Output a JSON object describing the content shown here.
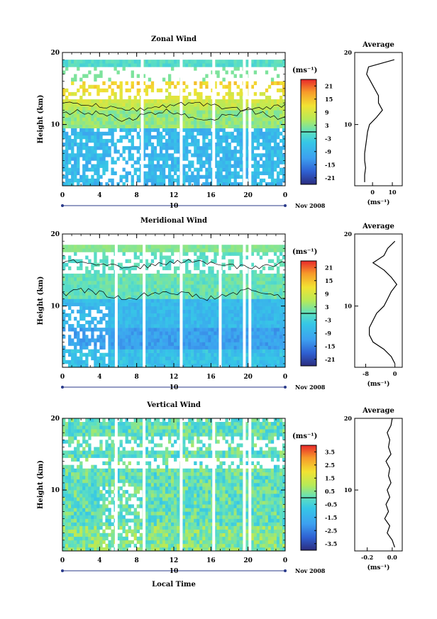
{
  "figure": {
    "date_label": "Nov 2008",
    "xlabel": "Local Time",
    "ylabel": "Height (km)",
    "unit_label": "(ms⁻¹)",
    "average_title": "Average",
    "date_marker": "10"
  },
  "chart_data": [
    {
      "type": "heatmap",
      "title": "Zonal Wind",
      "x_ticks": [
        "0",
        "4",
        "8",
        "12",
        "16",
        "20",
        "0"
      ],
      "y_ticks": [
        "10",
        "20"
      ],
      "xlim": [
        0,
        24
      ],
      "ylim": [
        1.5,
        20
      ],
      "colorbar": {
        "ticks": [
          "21",
          "15",
          "9",
          "3",
          "-3",
          "-9",
          "-15",
          "-21"
        ],
        "range": [
          -24,
          24
        ]
      },
      "white_gaps_hours": [
        8.6,
        12.8,
        16.3,
        19.6,
        20.2
      ],
      "contours": "0 ms-1 contour line",
      "average_profile": {
        "xlabel": "(ms⁻¹)",
        "x_ticks": [
          "0",
          "10"
        ],
        "xlim": [
          -9,
          15
        ],
        "height": [
          2,
          3,
          4,
          5,
          6,
          7,
          8,
          9,
          10,
          11,
          12,
          13,
          14,
          15,
          16,
          17,
          18,
          19
        ],
        "value": [
          -4,
          -4,
          -3.5,
          -4,
          -4,
          -3.5,
          -3,
          -2.5,
          -1.5,
          2,
          5,
          3,
          3,
          1,
          -1,
          -3,
          -2,
          11
        ]
      }
    },
    {
      "type": "heatmap",
      "title": "Meridional Wind",
      "x_ticks": [
        "0",
        "4",
        "8",
        "12",
        "16",
        "20",
        "0"
      ],
      "y_ticks": [
        "10",
        "20"
      ],
      "xlim": [
        0,
        24
      ],
      "ylim": [
        1.5,
        20
      ],
      "colorbar": {
        "ticks": [
          "21",
          "15",
          "9",
          "3",
          "-3",
          "-9",
          "-15",
          "-21"
        ],
        "range": [
          -24,
          24
        ]
      },
      "white_gaps_hours": [
        5.8,
        8.8,
        12.8,
        17.0,
        19.6,
        20.2
      ],
      "contours": "0 ms-1 contour line",
      "average_profile": {
        "xlabel": "(ms⁻¹)",
        "x_ticks": [
          "-8",
          "0"
        ],
        "xlim": [
          -11,
          2
        ],
        "height": [
          2,
          3,
          4,
          5,
          6,
          7,
          8,
          9,
          10,
          11,
          12,
          13,
          14,
          15,
          16,
          17,
          18,
          19
        ],
        "value": [
          0,
          -1,
          -3,
          -6,
          -7,
          -7,
          -6,
          -5,
          -3,
          -2,
          -1,
          0.5,
          -1,
          -3,
          -6,
          -3,
          -2,
          0
        ]
      }
    },
    {
      "type": "heatmap",
      "title": "Vertical Wind",
      "x_ticks": [
        "0",
        "4",
        "8",
        "12",
        "16",
        "20",
        "0"
      ],
      "y_ticks": [
        "10",
        "20"
      ],
      "xlim": [
        0,
        24
      ],
      "ylim": [
        1.5,
        20
      ],
      "colorbar": {
        "ticks": [
          "3.5",
          "2.5",
          "1.5",
          "0.5",
          "-0.5",
          "-1.5",
          "-2.5",
          "-3.5"
        ],
        "range": [
          -4,
          4
        ]
      },
      "white_gaps_hours": [
        5.8,
        8.8,
        12.8,
        16.3,
        19.6,
        20.2
      ],
      "average_profile": {
        "xlabel": "(ms⁻¹)",
        "x_ticks": [
          "-0.2",
          "0.0"
        ],
        "xlim": [
          -0.3,
          0.08
        ],
        "height": [
          2,
          3,
          4,
          5,
          6,
          7,
          8,
          9,
          10,
          11,
          12,
          13,
          14,
          15,
          16,
          17,
          18,
          19,
          20
        ],
        "value": [
          0.02,
          0,
          -0.04,
          -0.02,
          -0.06,
          -0.03,
          -0.05,
          -0.02,
          -0.04,
          -0.01,
          -0.03,
          -0.02,
          -0.05,
          -0.01,
          -0.03,
          -0.02,
          -0.04,
          -0.01,
          0
        ]
      }
    }
  ]
}
